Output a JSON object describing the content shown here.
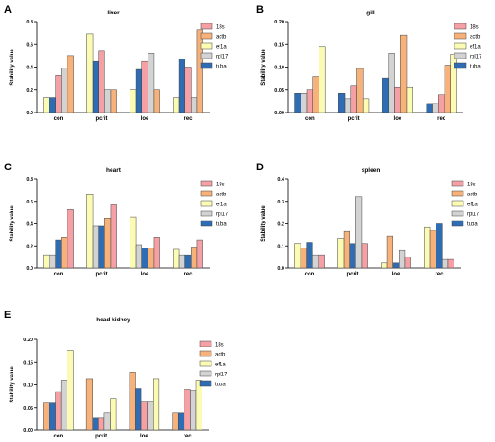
{
  "figure": {
    "legend_colors": {
      "18s": "#f4a0a4",
      "actb": "#f6b27a",
      "ef1a": "#fbfbb4",
      "rpl17": "#d3d3d3",
      "tuba": "#2e6db4"
    }
  },
  "chart_data": [
    {
      "type": "bar",
      "panel_label": "A",
      "title": "liver",
      "ylabel": "Stability value",
      "ylim": [
        0,
        0.8
      ],
      "yticks": [
        "0.0",
        "0.2",
        "0.4",
        "0.6",
        "0.8"
      ],
      "legend_position": "right",
      "categories": [
        "con",
        "pcrit",
        "loe",
        "rec"
      ],
      "bar_order": [
        "ef1a",
        "tuba",
        "18s",
        "rpl17",
        "actb"
      ],
      "series": [
        {
          "name": "18s",
          "color": "#f4a0a4",
          "values": [
            0.33,
            0.54,
            0.45,
            0.4
          ]
        },
        {
          "name": "actb",
          "color": "#f6b27a",
          "values": [
            0.5,
            0.2,
            0.2,
            0.73
          ]
        },
        {
          "name": "ef1a",
          "color": "#fbfbb4",
          "values": [
            0.13,
            0.69,
            0.2,
            0.13
          ]
        },
        {
          "name": "rpl17",
          "color": "#d3d3d3",
          "values": [
            0.39,
            0.2,
            0.52,
            0.13
          ]
        },
        {
          "name": "tuba",
          "color": "#2e6db4",
          "values": [
            0.13,
            0.45,
            0.38,
            0.47
          ]
        }
      ]
    },
    {
      "type": "bar",
      "panel_label": "B",
      "title": "gill",
      "ylabel": "Stability value",
      "ylim": [
        0,
        0.2
      ],
      "yticks": [
        "0.00",
        "0.05",
        "0.10",
        "0.15",
        "0.20"
      ],
      "legend_position": "right",
      "categories": [
        "con",
        "pcrit",
        "loe",
        "rec"
      ],
      "bar_order": [
        "tuba",
        "rpl17",
        "18s",
        "actb",
        "ef1a"
      ],
      "series": [
        {
          "name": "18s",
          "color": "#f4a0a4",
          "values": [
            0.05,
            0.06,
            0.055,
            0.04
          ]
        },
        {
          "name": "actb",
          "color": "#f6b27a",
          "values": [
            0.08,
            0.097,
            0.17,
            0.104
          ]
        },
        {
          "name": "ef1a",
          "color": "#fbfbb4",
          "values": [
            0.145,
            0.03,
            0.055,
            0.128
          ]
        },
        {
          "name": "rpl17",
          "color": "#d3d3d3",
          "values": [
            0.043,
            0.03,
            0.13,
            0.02
          ]
        },
        {
          "name": "tuba",
          "color": "#2e6db4",
          "values": [
            0.043,
            0.043,
            0.075,
            0.02
          ]
        }
      ]
    },
    {
      "type": "bar",
      "panel_label": "C",
      "title": "heart",
      "ylabel": "Stability value",
      "ylim": [
        0,
        0.8
      ],
      "yticks": [
        "0.0",
        "0.2",
        "0.4",
        "0.6",
        "0.8"
      ],
      "legend_position": "right",
      "categories": [
        "con",
        "pcrit",
        "loe",
        "rec"
      ],
      "bar_order": [
        "ef1a",
        "rpl17",
        "tuba",
        "actb",
        "18s"
      ],
      "series": [
        {
          "name": "18s",
          "color": "#f4a0a4",
          "values": [
            0.53,
            0.57,
            0.28,
            0.25
          ]
        },
        {
          "name": "actb",
          "color": "#f6b27a",
          "values": [
            0.28,
            0.45,
            0.18,
            0.19
          ]
        },
        {
          "name": "ef1a",
          "color": "#fbfbb4",
          "values": [
            0.12,
            0.66,
            0.46,
            0.17
          ]
        },
        {
          "name": "rpl17",
          "color": "#d3d3d3",
          "values": [
            0.12,
            0.38,
            0.21,
            0.12
          ]
        },
        {
          "name": "tuba",
          "color": "#2e6db4",
          "values": [
            0.25,
            0.38,
            0.18,
            0.12
          ]
        }
      ]
    },
    {
      "type": "bar",
      "panel_label": "D",
      "title": "spleen",
      "ylabel": "Stability value",
      "ylim": [
        0,
        0.4
      ],
      "yticks": [
        "0.0",
        "0.1",
        "0.2",
        "0.3",
        "0.4"
      ],
      "legend_position": "right",
      "categories": [
        "con",
        "pcrit",
        "loe",
        "rec"
      ],
      "bar_order": [
        "ef1a",
        "actb",
        "tuba",
        "rpl17",
        "18s"
      ],
      "series": [
        {
          "name": "18s",
          "color": "#f4a0a4",
          "values": [
            0.06,
            0.11,
            0.05,
            0.04
          ]
        },
        {
          "name": "actb",
          "color": "#f6b27a",
          "values": [
            0.09,
            0.165,
            0.145,
            0.17
          ]
        },
        {
          "name": "ef1a",
          "color": "#fbfbb4",
          "values": [
            0.11,
            0.135,
            0.025,
            0.185
          ]
        },
        {
          "name": "rpl17",
          "color": "#d3d3d3",
          "values": [
            0.06,
            0.32,
            0.08,
            0.04
          ]
        },
        {
          "name": "tuba",
          "color": "#2e6db4",
          "values": [
            0.115,
            0.11,
            0.025,
            0.2
          ]
        }
      ]
    },
    {
      "type": "bar",
      "panel_label": "E",
      "title": "head kidney",
      "ylabel": "Stability value",
      "ylim": [
        0,
        0.2
      ],
      "yticks": [
        "0.00",
        "0.05",
        "0.10",
        "0.15",
        "0.20"
      ],
      "legend_position": "right",
      "categories": [
        "con",
        "pcrit",
        "loe",
        "rec"
      ],
      "bar_order": [
        "actb",
        "tuba",
        "18s",
        "rpl17",
        "ef1a"
      ],
      "series": [
        {
          "name": "18s",
          "color": "#f4a0a4",
          "values": [
            0.085,
            0.028,
            0.062,
            0.09
          ]
        },
        {
          "name": "actb",
          "color": "#f6b27a",
          "values": [
            0.06,
            0.113,
            0.128,
            0.038
          ]
        },
        {
          "name": "ef1a",
          "color": "#fbfbb4",
          "values": [
            0.175,
            0.07,
            0.113,
            0.11
          ]
        },
        {
          "name": "rpl17",
          "color": "#d3d3d3",
          "values": [
            0.11,
            0.038,
            0.062,
            0.088
          ]
        },
        {
          "name": "tuba",
          "color": "#2e6db4",
          "values": [
            0.06,
            0.028,
            0.092,
            0.038
          ]
        }
      ]
    }
  ]
}
